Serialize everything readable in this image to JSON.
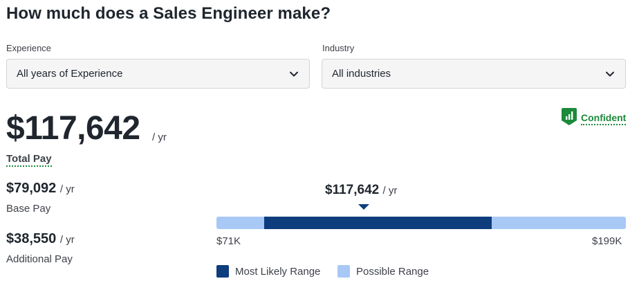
{
  "title": "How much does a Sales Engineer make?",
  "filters": {
    "experience": {
      "label": "Experience",
      "value": "All years of Experience"
    },
    "industry": {
      "label": "Industry",
      "value": "All industries"
    }
  },
  "confidence": {
    "label": "Confident",
    "icon": "bar-chart-badge-icon",
    "color": "#1b8a3a"
  },
  "total_pay": {
    "amount": "$117,642",
    "unit": "/ yr",
    "label": "Total Pay"
  },
  "base_pay": {
    "amount": "$79,092",
    "unit": "/ yr",
    "label": "Base Pay"
  },
  "additional_pay": {
    "amount": "$38,550",
    "unit": "/ yr",
    "label": "Additional Pay"
  },
  "range": {
    "median_label": "$117,642",
    "median_unit": "/ yr",
    "min_label": "$71K",
    "max_label": "$199K",
    "min": 71000,
    "max": 199000,
    "median": 117642,
    "likely_low": 86000,
    "likely_high": 157000,
    "legend": {
      "likely": "Most Likely Range",
      "possible": "Possible Range"
    },
    "colors": {
      "likely": "#0e3d7d",
      "possible": "#a8c8f5"
    }
  }
}
